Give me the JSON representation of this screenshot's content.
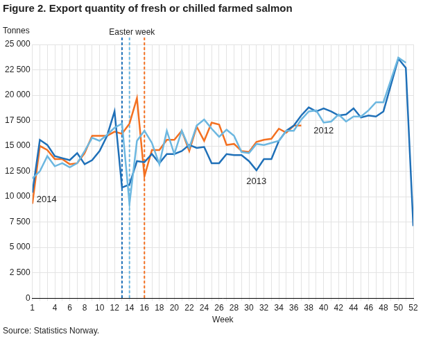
{
  "chart_data": {
    "type": "line",
    "title": "Figure 2. Export quantity of fresh or chilled farmed salmon",
    "y_label": "Tonnes",
    "x_label": "Week",
    "source": "Source: Statistics Norway.",
    "x": [
      1,
      2,
      3,
      4,
      5,
      6,
      7,
      8,
      9,
      10,
      11,
      12,
      13,
      14,
      15,
      16,
      17,
      18,
      19,
      20,
      21,
      22,
      23,
      24,
      25,
      26,
      27,
      28,
      29,
      30,
      31,
      32,
      33,
      34,
      35,
      36,
      37,
      38,
      39,
      40,
      41,
      42,
      43,
      44,
      45,
      46,
      47,
      48,
      49,
      50,
      51,
      52
    ],
    "xlim": [
      1,
      52
    ],
    "xticks": [
      1,
      4,
      6,
      8,
      10,
      12,
      14,
      16,
      18,
      20,
      22,
      24,
      26,
      28,
      30,
      32,
      34,
      36,
      38,
      40,
      42,
      44,
      46,
      48,
      50,
      52
    ],
    "ylim": [
      0,
      25000
    ],
    "yticks": [
      0,
      {
        "value": 2500,
        "label": "2 500"
      },
      {
        "value": 5000,
        "label": "5 000"
      },
      {
        "value": 7500,
        "label": "7 500"
      },
      {
        "value": 10000,
        "label": "10 000"
      },
      {
        "value": 12500,
        "label": "12 500"
      },
      {
        "value": 15000,
        "label": "15 000"
      },
      {
        "value": 17500,
        "label": "17 500"
      },
      {
        "value": 20000,
        "label": "20 000"
      },
      {
        "value": 22500,
        "label": "22 500"
      },
      {
        "value": 25000,
        "label": "25 000"
      }
    ],
    "grid": true,
    "series": [
      {
        "name": "2012",
        "color": "#6cb7e0",
        "values": [
          11800,
          12500,
          14000,
          13000,
          13300,
          12900,
          13300,
          14500,
          15800,
          15500,
          16100,
          16800,
          17200,
          9300,
          15500,
          16500,
          15300,
          13200,
          16500,
          14200,
          16500,
          14800,
          17000,
          17600,
          16700,
          15900,
          16600,
          16000,
          14400,
          14300,
          15200,
          15100,
          15300,
          15500,
          16500,
          16500,
          17600,
          18400,
          18500,
          17300,
          17400,
          18100,
          17400,
          17900,
          17900,
          18500,
          19300,
          19300,
          21500,
          23700,
          23200,
          null
        ]
      },
      {
        "name": "2013",
        "color": "#1f70b8",
        "values": [
          10400,
          15600,
          15100,
          14000,
          13800,
          13600,
          14300,
          13200,
          13600,
          14500,
          16000,
          18400,
          10900,
          11200,
          13500,
          13400,
          14200,
          13300,
          14200,
          14200,
          14500,
          15100,
          14800,
          14900,
          13300,
          13300,
          14200,
          14100,
          14100,
          13500,
          12600,
          13700,
          13700,
          15500,
          16500,
          17000,
          18000,
          18800,
          18400,
          18700,
          18400,
          18000,
          18100,
          18700,
          17800,
          18000,
          17900,
          18400,
          21000,
          23600,
          22700,
          7100
        ]
      },
      {
        "name": "2014",
        "color": "#f37021",
        "values": [
          9300,
          15000,
          14600,
          13700,
          13700,
          13200,
          13300,
          14300,
          16000,
          16000,
          16000,
          16400,
          16200,
          17200,
          19700,
          12000,
          14600,
          14600,
          15600,
          15600,
          16500,
          14500,
          16900,
          15500,
          17300,
          17100,
          15100,
          15200,
          14500,
          14400,
          15400,
          15600,
          15700,
          16700,
          16300,
          17000,
          17000,
          null,
          null,
          null,
          null,
          null,
          null,
          null,
          null,
          null,
          null,
          null,
          null,
          null,
          null,
          null
        ]
      }
    ],
    "annotations": [
      {
        "text": "Easter week",
        "line_style": "dashed",
        "lines": [
          {
            "x": 13,
            "color": "#1f70b8"
          },
          {
            "x": 14,
            "color": "#6cb7e0"
          },
          {
            "x": 16,
            "color": "#f37021"
          }
        ]
      }
    ]
  }
}
